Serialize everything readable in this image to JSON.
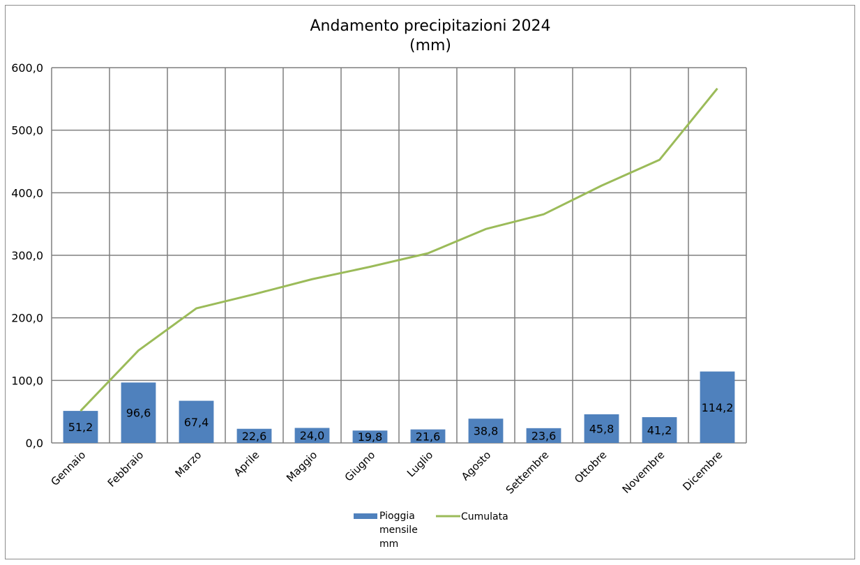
{
  "chart_data": {
    "type": "bar",
    "title": "Andamento precipitazioni 2024",
    "subtitle": "(mm)",
    "categories": [
      "Gennaio",
      "Febbraio",
      "Marzo",
      "Aprile",
      "Maggio",
      "Giugno",
      "Luglio",
      "Agosto",
      "Settembre",
      "Ottobre",
      "Novembre",
      "Dicembre"
    ],
    "series": [
      {
        "name": "Pioggia mensile mm",
        "type": "bar",
        "color": "#4f81bd",
        "values": [
          51.2,
          96.6,
          67.4,
          22.6,
          24.0,
          19.8,
          21.6,
          38.8,
          23.6,
          45.8,
          41.2,
          114.2
        ],
        "data_labels": [
          "51,2",
          "96,6",
          "67,4",
          "22,6",
          "24,0",
          "19,8",
          "21,6",
          "38,8",
          "23,6",
          "45,8",
          "41,2",
          "114,2"
        ]
      },
      {
        "name": "Cumulata",
        "type": "line",
        "color": "#9bbb59",
        "values": [
          51.2,
          147.8,
          215.2,
          237.8,
          261.8,
          281.6,
          303.2,
          342.0,
          365.6,
          411.4,
          452.6,
          566.8
        ]
      }
    ],
    "ylim": [
      0,
      600
    ],
    "yticks": [
      "0,0",
      "100,0",
      "200,0",
      "300,0",
      "400,0",
      "500,0",
      "600,0"
    ],
    "grid": true,
    "legend_position": "bottom",
    "legend": [
      "Pioggia mensile mm",
      "Cumulata"
    ]
  }
}
